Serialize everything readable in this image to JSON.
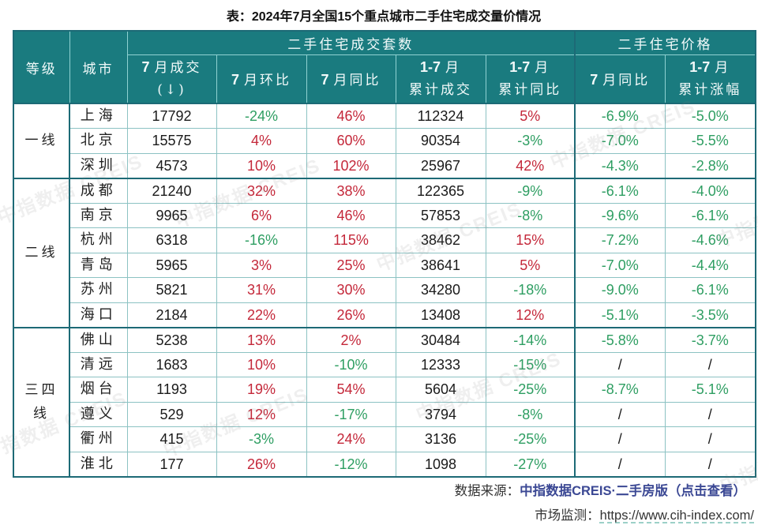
{
  "title": "表：2024年7月全国15个重点城市二手住宅成交量价情况",
  "header": {
    "tier": "等级",
    "city": "城市",
    "group_volume": "二手住宅成交套数",
    "group_price": "二手住宅价格",
    "columns": [
      {
        "num": "7",
        "label": "月成交",
        "sub": "(↓)"
      },
      {
        "num": "7",
        "label": "月环比",
        "sub": ""
      },
      {
        "num": "7",
        "label": "月同比",
        "sub": ""
      },
      {
        "num": "1-7",
        "label": "月",
        "sub": "累计成交"
      },
      {
        "num": "1-7",
        "label": "月",
        "sub": "累计同比"
      },
      {
        "num": "7",
        "label": "月同比",
        "sub": ""
      },
      {
        "num": "1-7",
        "label": "月",
        "sub": "累计涨幅"
      }
    ]
  },
  "tiers": [
    {
      "label": "一线",
      "rows": [
        {
          "city": "上海",
          "values": [
            "17792",
            "-24%",
            "46%",
            "112324",
            "5%",
            "-6.9%",
            "-5.0%"
          ]
        },
        {
          "city": "北京",
          "values": [
            "15575",
            "4%",
            "60%",
            "90354",
            "-3%",
            "-7.0%",
            "-5.5%"
          ]
        },
        {
          "city": "深圳",
          "values": [
            "4573",
            "10%",
            "102%",
            "25967",
            "42%",
            "-4.3%",
            "-2.8%"
          ]
        }
      ]
    },
    {
      "label": "二线",
      "rows": [
        {
          "city": "成都",
          "values": [
            "21240",
            "32%",
            "38%",
            "122365",
            "-9%",
            "-6.1%",
            "-4.0%"
          ]
        },
        {
          "city": "南京",
          "values": [
            "9965",
            "6%",
            "46%",
            "57853",
            "-8%",
            "-9.6%",
            "-6.1%"
          ]
        },
        {
          "city": "杭州",
          "values": [
            "6318",
            "-16%",
            "115%",
            "38462",
            "15%",
            "-7.2%",
            "-4.6%"
          ]
        },
        {
          "city": "青岛",
          "values": [
            "5965",
            "3%",
            "25%",
            "38641",
            "5%",
            "-7.0%",
            "-4.4%"
          ]
        },
        {
          "city": "苏州",
          "values": [
            "5821",
            "31%",
            "30%",
            "34280",
            "-18%",
            "-9.0%",
            "-6.1%"
          ]
        },
        {
          "city": "海口",
          "values": [
            "2184",
            "22%",
            "26%",
            "13408",
            "12%",
            "-5.1%",
            "-3.5%"
          ]
        }
      ]
    },
    {
      "label": "三四线",
      "rows": [
        {
          "city": "佛山",
          "values": [
            "5238",
            "13%",
            "2%",
            "30484",
            "-14%",
            "-5.8%",
            "-3.7%"
          ]
        },
        {
          "city": "清远",
          "values": [
            "1683",
            "10%",
            "-10%",
            "12333",
            "-15%",
            "/",
            "/"
          ]
        },
        {
          "city": "烟台",
          "values": [
            "1193",
            "19%",
            "54%",
            "5604",
            "-25%",
            "-8.7%",
            "-5.1%"
          ]
        },
        {
          "city": "遵义",
          "values": [
            "529",
            "12%",
            "-17%",
            "3794",
            "-8%",
            "/",
            "/"
          ]
        },
        {
          "city": "衢州",
          "values": [
            "415",
            "-3%",
            "24%",
            "3136",
            "-25%",
            "/",
            "/"
          ]
        },
        {
          "city": "淮北",
          "values": [
            "177",
            "26%",
            "-12%",
            "1098",
            "-27%",
            "/",
            "/"
          ]
        }
      ]
    }
  ],
  "watermark": "中指数据 CREIS",
  "footer": {
    "source_label": "数据来源：",
    "source_link": "中指数据CREIS·二手房版（点击查看）",
    "monitor_label": "市场监测：",
    "monitor_url": "https://www.cih-index.com/"
  },
  "colors": {
    "header_bg": "#1a7b7f",
    "border_dark": "#1d6a76",
    "positive": "#c4283a",
    "negative": "#2e9e62",
    "neutral": "#1a1a1a",
    "link": "#3b4894"
  }
}
